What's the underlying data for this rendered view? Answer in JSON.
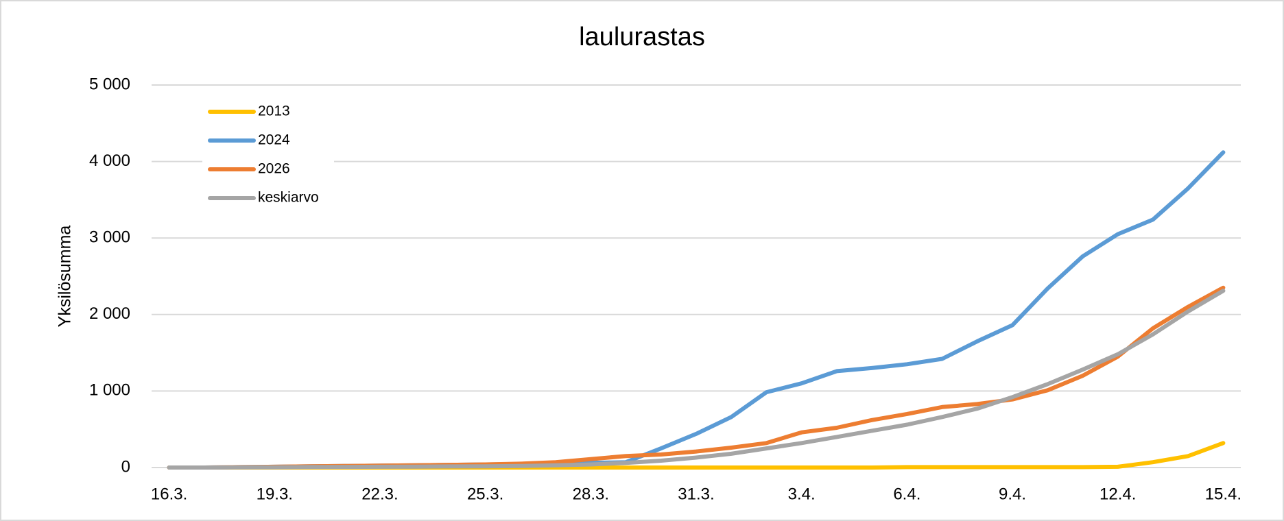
{
  "chart_data": {
    "type": "line",
    "title": "laulurastas",
    "y_label": "Yksilösumma",
    "categories": [
      "16.3.",
      null,
      null,
      "19.3.",
      null,
      null,
      "22.3.",
      null,
      null,
      "25.3.",
      null,
      null,
      "28.3.",
      null,
      null,
      "31.3.",
      null,
      null,
      "3.4.",
      null,
      null,
      "6.4.",
      null,
      null,
      "9.4.",
      null,
      null,
      "12.4.",
      null,
      null,
      "15.4."
    ],
    "series": [
      {
        "name": "2013",
        "color": "#ffc000",
        "values": [
          0,
          0,
          0,
          0,
          0,
          0,
          0,
          0,
          0,
          0,
          0,
          0,
          0,
          0,
          0,
          0,
          0,
          0,
          0,
          0,
          0,
          5,
          5,
          5,
          5,
          5,
          5,
          10,
          70,
          150,
          320
        ]
      },
      {
        "name": "2024",
        "color": "#5b9bd5",
        "values": [
          0,
          0,
          5,
          10,
          15,
          20,
          25,
          30,
          35,
          40,
          45,
          50,
          60,
          70,
          250,
          440,
          660,
          985,
          1100,
          1260,
          1300,
          1350,
          1420,
          1650,
          1860,
          2340,
          2760,
          3050,
          3240,
          3650,
          4120
        ]
      },
      {
        "name": "2026",
        "color": "#ed7d31",
        "values": [
          0,
          0,
          5,
          10,
          15,
          20,
          25,
          30,
          35,
          40,
          50,
          70,
          110,
          150,
          170,
          210,
          260,
          320,
          460,
          520,
          620,
          700,
          790,
          830,
          890,
          1010,
          1200,
          1450,
          1820,
          2100,
          2350
        ]
      },
      {
        "name": "keskiarvo",
        "color": "#a5a5a5",
        "values": [
          0,
          0,
          2,
          4,
          6,
          8,
          10,
          12,
          14,
          16,
          20,
          30,
          40,
          60,
          90,
          130,
          180,
          250,
          320,
          400,
          480,
          560,
          660,
          770,
          920,
          1090,
          1280,
          1480,
          1740,
          2040,
          2310
        ]
      }
    ],
    "ylim": [
      0,
      5000
    ],
    "yticks": [
      0,
      {
        "value": 1000,
        "label": "1 000"
      },
      {
        "value": 2000,
        "label": "2 000"
      },
      {
        "value": 3000,
        "label": "3 000"
      },
      {
        "value": 4000,
        "label": "4 000"
      },
      {
        "value": 5000,
        "label": "5 000"
      }
    ],
    "grid": true,
    "legend": "upper left"
  }
}
